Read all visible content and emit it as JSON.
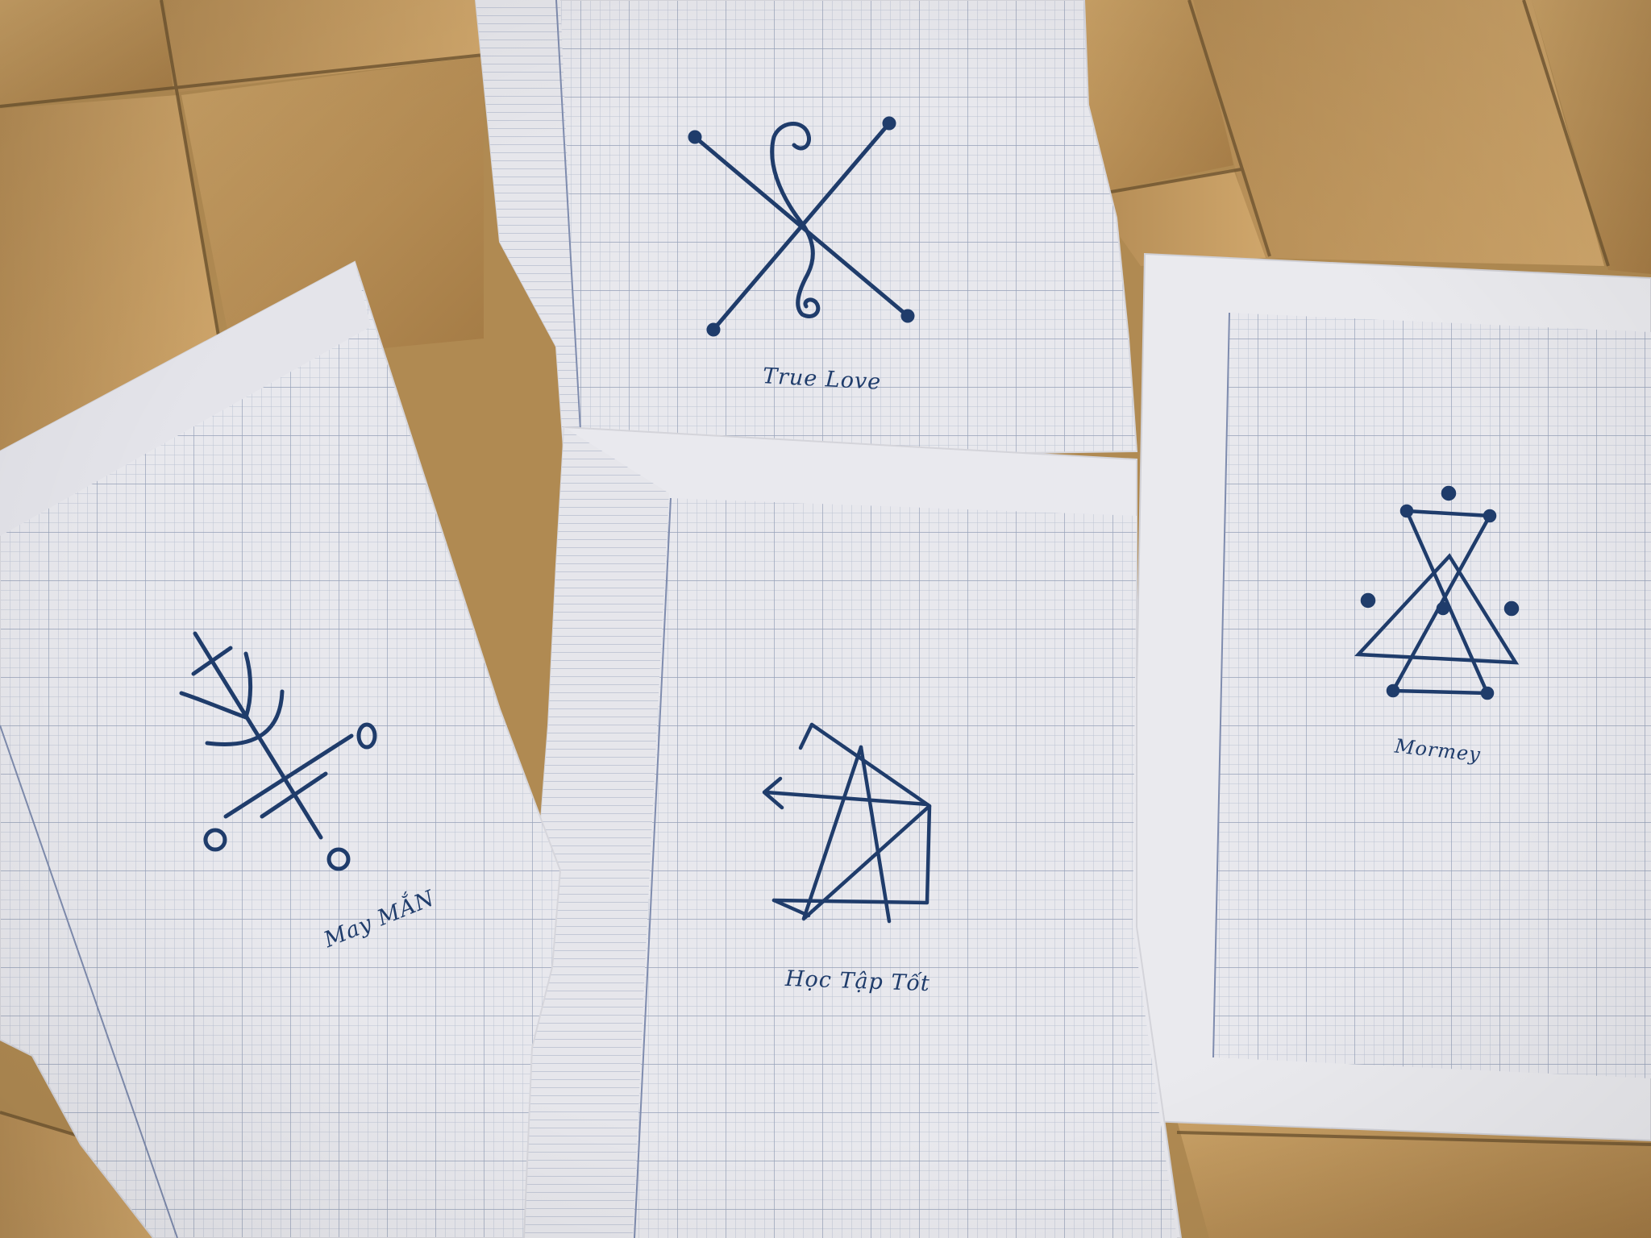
{
  "photo": {
    "floor": {
      "tile_light": "#c59a5c",
      "tile_dark": "#9d7642",
      "grout": "#6f5531"
    },
    "paper": {
      "base": "#e9e8ec",
      "grid_fine": "#b7bfd0",
      "grid_major": "#8f9ab3",
      "margin_line": "#7f8cae"
    },
    "ink": "#1f3c6b"
  },
  "sheets": [
    {
      "id": "true-love",
      "label": "True Love",
      "symbol": "crossed-lines-with-double-spiral"
    },
    {
      "id": "may-man",
      "label": "May MẮN",
      "symbol": "branch-rune-with-circles"
    },
    {
      "id": "hoc-tap-tot",
      "label": "Học Tập Tốt",
      "symbol": "overlapping-triangles-with-arrow"
    },
    {
      "id": "money",
      "label": "Mormey",
      "symbol": "hourglass-triangles-with-dots"
    }
  ]
}
